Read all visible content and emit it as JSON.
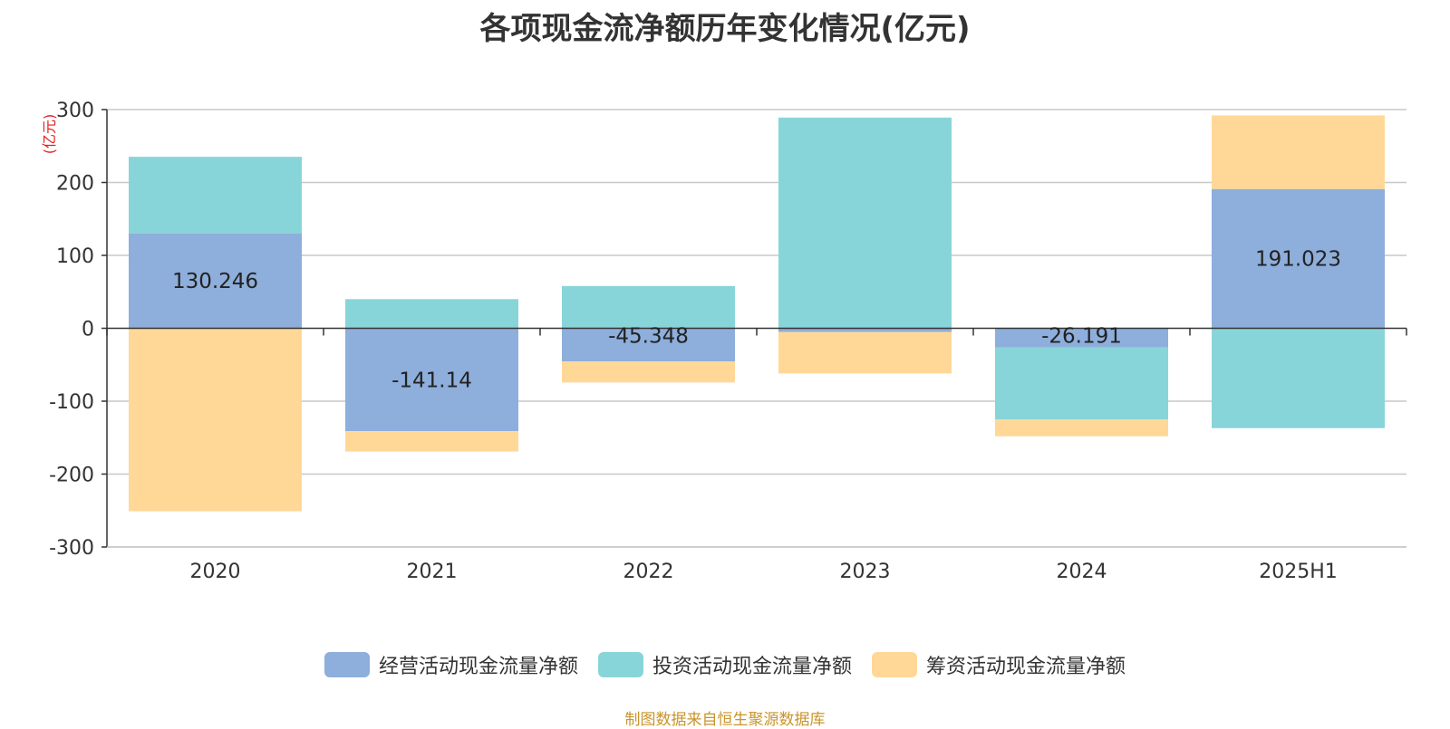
{
  "chart_data": {
    "type": "bar",
    "stacked": true,
    "title": "各项现金流净额历年变化情况(亿元)",
    "ylabel": "(亿元)",
    "categories": [
      "2020",
      "2021",
      "2022",
      "2023",
      "2024",
      "2025H1"
    ],
    "ylim": [
      -300,
      300
    ],
    "yticks": [
      300,
      200,
      100,
      0,
      -100,
      -200,
      -300
    ],
    "grid": true,
    "legend_position": "bottom",
    "series": [
      {
        "name": "经营活动现金流量净额",
        "color": "#8eaedb",
        "values": [
          130.246,
          -141.14,
          -45.348,
          -5,
          -26.191,
          191.023
        ]
      },
      {
        "name": "投资活动现金流量净额",
        "color": "#88d5d9",
        "values": [
          105,
          40,
          58,
          289,
          -99,
          -137
        ]
      },
      {
        "name": "筹资活动现金流量净额",
        "color": "#ffd898",
        "values": [
          -251,
          -28,
          -29,
          -57,
          -23,
          101
        ]
      }
    ],
    "data_labels": [
      "130.246",
      "-141.14",
      "-45.348",
      "",
      "-26.191",
      "191.023"
    ]
  },
  "source_note": "制图数据来自恒生聚源数据库"
}
